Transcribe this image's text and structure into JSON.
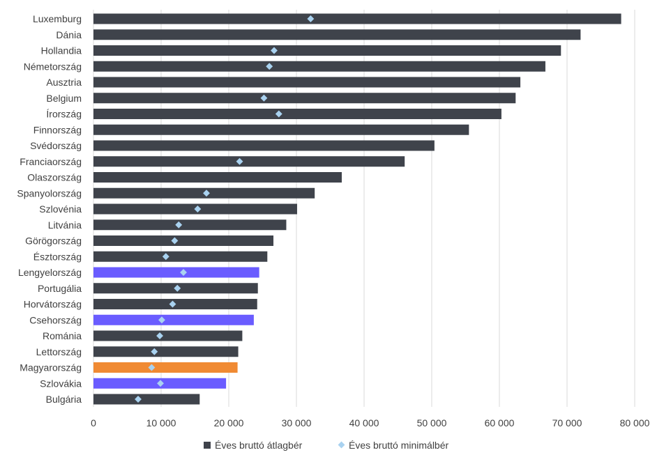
{
  "chart_data": {
    "type": "bar",
    "orientation": "horizontal",
    "categories": [
      "Luxemburg",
      "Dánia",
      "Hollandia",
      "Németország",
      "Ausztria",
      "Belgium",
      "Írország",
      "Finnország",
      "Svédország",
      "Franciaország",
      "Olaszország",
      "Spanyolország",
      "Szlovénia",
      "Litvánia",
      "Görögország",
      "Észtország",
      "Lengyelország",
      "Portugália",
      "Horvátország",
      "Csehország",
      "Románia",
      "Lettország",
      "Magyarország",
      "Szlovákia",
      "Bulgária"
    ],
    "series": [
      {
        "name": "Éves bruttó átlagbér",
        "kind": "bar",
        "color": "#3f434b",
        "values": [
          78000,
          72000,
          69100,
          66800,
          63100,
          62400,
          60300,
          55500,
          50400,
          46000,
          36700,
          32700,
          30100,
          28500,
          26600,
          25700,
          24500,
          24300,
          24200,
          23700,
          22000,
          21400,
          21300,
          19600,
          15700
        ]
      },
      {
        "name": "Éves bruttó minimálbér",
        "kind": "marker",
        "color": "#a9d2f0",
        "values": [
          32100,
          null,
          26700,
          26000,
          null,
          25200,
          27400,
          null,
          null,
          21600,
          null,
          16700,
          15400,
          12600,
          12000,
          10700,
          13300,
          12400,
          11700,
          10100,
          9800,
          9000,
          8600,
          9900,
          6600
        ]
      }
    ],
    "highlight_colors": {
      "Lengyelország": "#6a5cff",
      "Csehország": "#6a5cff",
      "Szlovákia": "#6a5cff",
      "Magyarország": "#f08a33"
    },
    "xlim": [
      0,
      80000
    ],
    "xticks": [
      0,
      10000,
      20000,
      30000,
      40000,
      50000,
      60000,
      70000,
      80000
    ],
    "xtick_labels": [
      "0",
      "10 000",
      "20 000",
      "30 000",
      "40 000",
      "50 000",
      "60 000",
      "70 000",
      "80 000"
    ],
    "grid": "vertical",
    "legend_position": "bottom",
    "title": "",
    "xlabel": "",
    "ylabel": ""
  }
}
